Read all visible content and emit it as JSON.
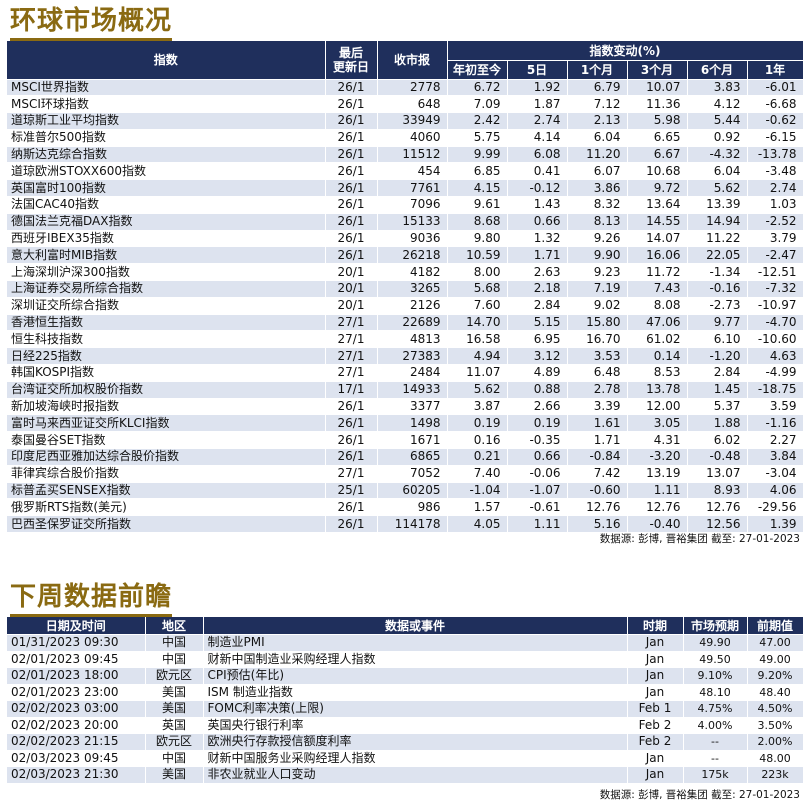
{
  "market": {
    "title": "环球市场概况",
    "headers": {
      "index": "指数",
      "last_update": "最后\n更新日",
      "close": "收市报",
      "change_group": "指数变动(%)",
      "periods": [
        "年初至今",
        "5日",
        "1个月",
        "3个月",
        "6个月",
        "1年"
      ]
    },
    "rows": [
      [
        "MSCI世界指数",
        "26/1",
        "2778",
        "6.72",
        "1.92",
        "6.79",
        "10.07",
        "3.83",
        "-6.01"
      ],
      [
        "MSCI环球指数",
        "26/1",
        "648",
        "7.09",
        "1.87",
        "7.12",
        "11.36",
        "4.12",
        "-6.68"
      ],
      [
        "道琼斯工业平均指数",
        "26/1",
        "33949",
        "2.42",
        "2.74",
        "2.13",
        "5.98",
        "5.44",
        "-0.62"
      ],
      [
        "标准普尔500指数",
        "26/1",
        "4060",
        "5.75",
        "4.14",
        "6.04",
        "6.65",
        "0.92",
        "-6.15"
      ],
      [
        "纳斯达克综合指数",
        "26/1",
        "11512",
        "9.99",
        "6.08",
        "11.20",
        "6.67",
        "-4.32",
        "-13.78"
      ],
      [
        "道琼欧洲STOXX600指数",
        "26/1",
        "454",
        "6.85",
        "0.41",
        "6.07",
        "10.68",
        "6.04",
        "-3.48"
      ],
      [
        "英国富时100指数",
        "26/1",
        "7761",
        "4.15",
        "-0.12",
        "3.86",
        "9.72",
        "5.62",
        "2.74"
      ],
      [
        "法国CAC40指数",
        "26/1",
        "7096",
        "9.61",
        "1.43",
        "8.32",
        "13.64",
        "13.39",
        "1.03"
      ],
      [
        "德国法兰克福DAX指数",
        "26/1",
        "15133",
        "8.68",
        "0.66",
        "8.13",
        "14.55",
        "14.94",
        "-2.52"
      ],
      [
        "西班牙IBEX35指数",
        "26/1",
        "9036",
        "9.80",
        "1.32",
        "9.26",
        "14.07",
        "11.22",
        "3.79"
      ],
      [
        "意大利富时MIB指数",
        "26/1",
        "26218",
        "10.59",
        "1.71",
        "9.90",
        "16.06",
        "22.05",
        "-2.47"
      ],
      [
        "上海深圳沪深300指数",
        "20/1",
        "4182",
        "8.00",
        "2.63",
        "9.23",
        "11.72",
        "-1.34",
        "-12.51"
      ],
      [
        "上海证券交易所综合指数",
        "20/1",
        "3265",
        "5.68",
        "2.18",
        "7.19",
        "7.43",
        "-0.16",
        "-7.32"
      ],
      [
        "深圳证交所综合指数",
        "20/1",
        "2126",
        "7.60",
        "2.84",
        "9.02",
        "8.08",
        "-2.73",
        "-10.97"
      ],
      [
        "香港恒生指数",
        "27/1",
        "22689",
        "14.70",
        "5.15",
        "15.80",
        "47.06",
        "9.77",
        "-4.70"
      ],
      [
        "恒生科技指数",
        "27/1",
        "4813",
        "16.58",
        "6.95",
        "16.70",
        "61.02",
        "6.10",
        "-10.60"
      ],
      [
        "日经225指数",
        "27/1",
        "27383",
        "4.94",
        "3.12",
        "3.53",
        "0.14",
        "-1.20",
        "4.63"
      ],
      [
        "韩国KOSPI指数",
        "27/1",
        "2484",
        "11.07",
        "4.89",
        "6.48",
        "8.53",
        "2.84",
        "-4.99"
      ],
      [
        "台湾证交所加权股价指数",
        "17/1",
        "14933",
        "5.62",
        "0.88",
        "2.78",
        "13.78",
        "1.45",
        "-18.75"
      ],
      [
        "新加坡海峡时报指数",
        "26/1",
        "3377",
        "3.87",
        "2.66",
        "3.39",
        "12.00",
        "5.37",
        "3.59"
      ],
      [
        "富时马来西亚证交所KLCI指数",
        "26/1",
        "1498",
        "0.19",
        "0.19",
        "1.61",
        "3.05",
        "1.88",
        "-1.16"
      ],
      [
        "泰国曼谷SET指数",
        "26/1",
        "1671",
        "0.16",
        "-0.35",
        "1.71",
        "4.31",
        "6.02",
        "2.27"
      ],
      [
        "印度尼西亚雅加达综合股价指数",
        "26/1",
        "6865",
        "0.21",
        "0.66",
        "-0.84",
        "-3.20",
        "-0.48",
        "3.84"
      ],
      [
        "菲律宾综合股价指数",
        "27/1",
        "7052",
        "7.40",
        "-0.06",
        "7.42",
        "13.19",
        "13.07",
        "-3.04"
      ],
      [
        "标普孟买SENSEX指数",
        "25/1",
        "60205",
        "-1.04",
        "-1.07",
        "-0.60",
        "1.11",
        "8.93",
        "4.06"
      ],
      [
        "俄罗斯RTS指数(美元)",
        "26/1",
        "986",
        "1.57",
        "-0.61",
        "12.76",
        "12.76",
        "12.76",
        "-29.56"
      ],
      [
        "巴西圣保罗证交所指数",
        "26/1",
        "114178",
        "4.05",
        "1.11",
        "5.16",
        "-0.40",
        "12.56",
        "1.39"
      ]
    ],
    "source": "数据源: 彭博, 晋裕集团 截至: 27-01-2023"
  },
  "calendar": {
    "title": "下周数据前瞻",
    "headers": [
      "日期及时间",
      "地区",
      "数据或事件",
      "时期",
      "市场预期",
      "前期值"
    ],
    "rows": [
      [
        "01/31/2023 09:30",
        "中国",
        "制造业PMI",
        "Jan",
        "49.90",
        "47.00"
      ],
      [
        "02/01/2023 09:45",
        "中国",
        "财新中国制造业采购经理人指数",
        "Jan",
        "49.50",
        "49.00"
      ],
      [
        "02/01/2023 18:00",
        "欧元区",
        "CPI预估(年比)",
        "Jan",
        "9.10%",
        "9.20%"
      ],
      [
        "02/01/2023 23:00",
        "美国",
        "ISM 制造业指数",
        "Jan",
        "48.10",
        "48.40"
      ],
      [
        "02/02/2023 03:00",
        "美国",
        "FOMC利率决策(上限)",
        "Feb 1",
        "4.75%",
        "4.50%"
      ],
      [
        "02/02/2023 20:00",
        "英国",
        "英国央行银行利率",
        "Feb 2",
        "4.00%",
        "3.50%"
      ],
      [
        "02/02/2023 21:15",
        "欧元区",
        "欧洲央行存款授信额度利率",
        "Feb 2",
        "--",
        "2.00%"
      ],
      [
        "02/03/2023 09:45",
        "中国",
        "财新中国服务业采购经理人指数",
        "Jan",
        "--",
        "48.00"
      ],
      [
        "02/03/2023 21:30",
        "美国",
        "非农业就业人口变动",
        "Jan",
        "175k",
        "223k"
      ]
    ],
    "source": "数据源: 彭博, 晋裕集团 截至: 27-01-2023"
  },
  "colors": {
    "header_bg": "#1f2f5c",
    "stripe": "#dde3ef",
    "title": "#8a6a12"
  }
}
